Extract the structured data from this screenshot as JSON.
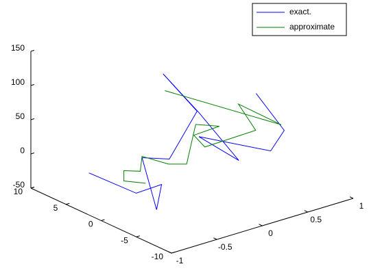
{
  "chart_data": {
    "type": "line3d",
    "xlim": [
      -1,
      1
    ],
    "ylim": [
      -10,
      10
    ],
    "zlim": [
      -50,
      150
    ],
    "xticks": [
      -1,
      -0.5,
      0,
      0.5,
      1
    ],
    "yticks": [
      10,
      5,
      0,
      -5,
      -10
    ],
    "zticks": [
      -50,
      0,
      50,
      100,
      150
    ],
    "legend": "upper right",
    "series": [
      {
        "name": "exact.",
        "color": "#0000ff",
        "x": [
          -0.67,
          -0.46,
          -0.49,
          -0.7,
          -0.55,
          -0.25,
          0.21,
          -0.01,
          0.08,
          0.36,
          0.23,
          0.71,
          0.86,
          0.86
        ],
        "y": [
          6,
          2,
          -2,
          -4,
          0,
          0,
          2,
          4,
          0,
          -2,
          2,
          -2,
          -2,
          2
        ],
        "z": [
          -22,
          -41,
          -8,
          -27,
          24,
          10,
          52,
          106,
          64,
          -7,
          14,
          -7,
          17,
          52
        ]
      },
      {
        "name": "approximate",
        "color": "#007f00",
        "x": [
          -0.51,
          -0.75,
          -0.75,
          -0.57,
          -0.55,
          -0.26,
          -0.06,
          0.04,
          0.3,
          0.02,
          0.14,
          0.7,
          0.51,
          0.98,
          -0.3
        ],
        "y": [
          0,
          0,
          0,
          0,
          0,
          0,
          0,
          0,
          0,
          0,
          0,
          0,
          0,
          0,
          0
        ],
        "z": [
          -15,
          -2,
          13,
          5,
          26,
          3,
          -5,
          49,
          36,
          34,
          12,
          14,
          60,
          11,
          112
        ]
      }
    ]
  }
}
